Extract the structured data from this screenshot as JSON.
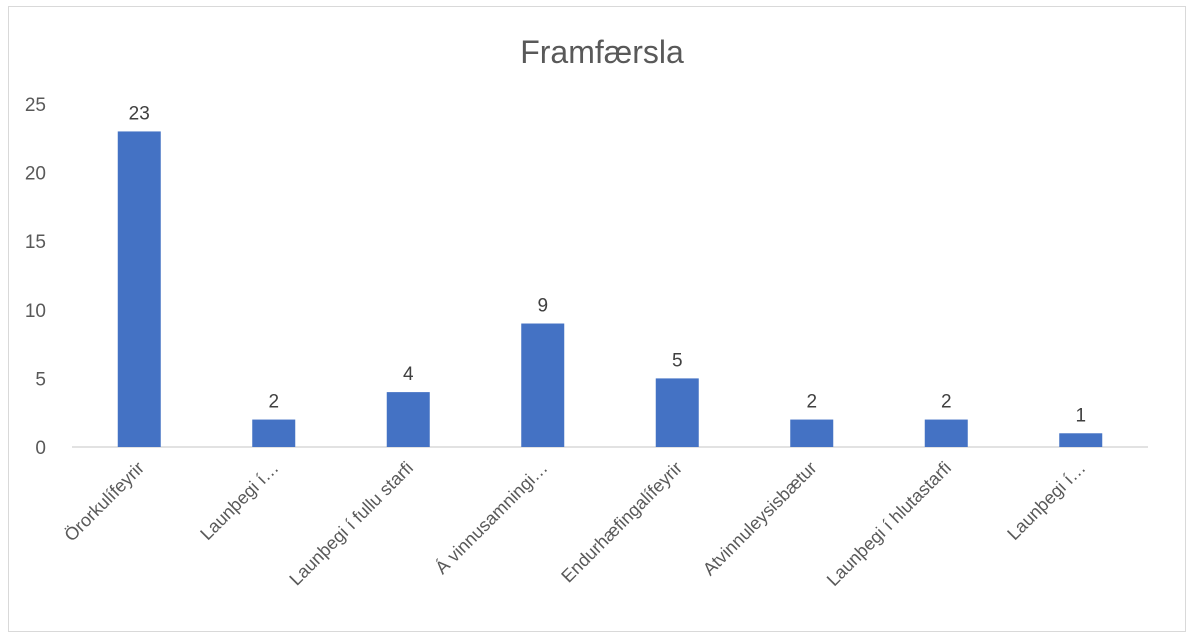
{
  "chart_data": {
    "type": "bar",
    "title": "Framfærsla",
    "categories": [
      "Örorkulífeyrir",
      "Launþegi í…",
      "Launþegi í fullu starfi",
      "Á vinnusamningi…",
      "Endurhæfingalífeyrir",
      "Atvinnuleysisbætur",
      "Launþegi í hlutastarfi",
      "Launþegi í…"
    ],
    "values": [
      23,
      2,
      4,
      9,
      5,
      2,
      2,
      1
    ],
    "ylim": [
      0,
      25
    ],
    "yticks": [
      0,
      5,
      10,
      15,
      20,
      25
    ],
    "xlabel": "",
    "ylabel": "",
    "grid": false,
    "legend": "none",
    "bar_color": "#4472c4",
    "data_labels": true
  }
}
